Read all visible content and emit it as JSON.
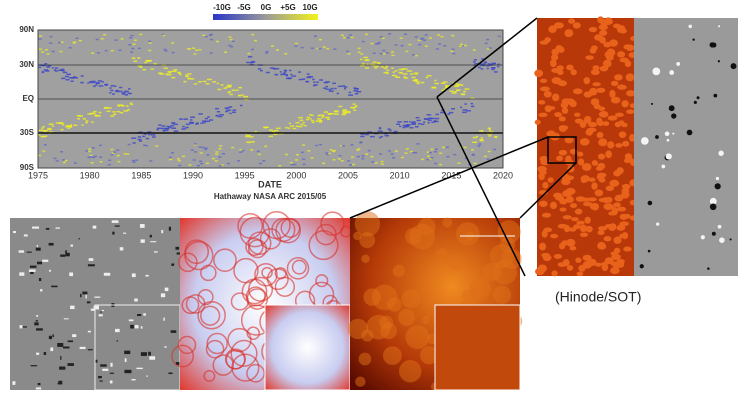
{
  "butterfly": {
    "colorbar_labels": [
      "-10G",
      "-5G",
      "0G",
      "+5G",
      "10G"
    ],
    "y_labels": [
      "90N",
      "30N",
      "EQ",
      "30S",
      "90S"
    ],
    "x_labels": [
      "1975",
      "1980",
      "1985",
      "1990",
      "1995",
      "2000",
      "2005",
      "2010",
      "2015",
      "2020"
    ],
    "xlabel": "DATE",
    "credit": "Hathaway NASA ARC 2015/05"
  },
  "hinode_caption": "(Hinode/SOT)"
}
